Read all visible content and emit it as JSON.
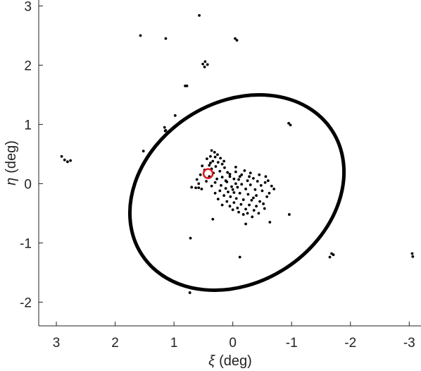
{
  "chart_data": {
    "type": "scatter",
    "xlabel": {
      "symbol": "ξ",
      "unit": "(deg)"
    },
    "ylabel": {
      "symbol": "η",
      "unit": "(deg)"
    },
    "xlim": [
      -3.2,
      3.3
    ],
    "ylim": [
      -2.4,
      3.1
    ],
    "x_reversed": true,
    "x_ticks": [
      3,
      2,
      1,
      0,
      -1,
      -2,
      -3
    ],
    "x_tick_labels": [
      "3",
      "2",
      "1",
      "0",
      "-1",
      "-2",
      "-3"
    ],
    "y_ticks": [
      3,
      2,
      1,
      0,
      -1,
      -2
    ],
    "y_tick_labels": [
      "3",
      "2",
      "1",
      "0",
      "-1",
      "-2"
    ],
    "grid": false,
    "colors": {
      "points": "#000000",
      "ellipse": "#000000",
      "marker": "#e0161b"
    },
    "ellipse": {
      "center": [
        -0.07,
        -0.15
      ],
      "semi_major": 1.93,
      "semi_minor": 1.52,
      "major_axis_angle_deg": -33
    },
    "highlight": {
      "x": 0.42,
      "y": 0.17
    },
    "points": [
      [
        0.57,
        2.84
      ],
      [
        1.57,
        2.5
      ],
      [
        1.14,
        2.45
      ],
      [
        -0.04,
        2.45
      ],
      [
        -0.07,
        2.42
      ],
      [
        0.47,
        2.06
      ],
      [
        0.51,
        2.02
      ],
      [
        0.43,
        2.01
      ],
      [
        0.48,
        1.97
      ],
      [
        0.81,
        1.65
      ],
      [
        0.78,
        1.65
      ],
      [
        0.98,
        1.15
      ],
      [
        1.16,
        0.95
      ],
      [
        1.15,
        0.89
      ],
      [
        1.14,
        0.9
      ],
      [
        -0.95,
        1.02
      ],
      [
        -0.98,
        0.99
      ],
      [
        1.52,
        0.55
      ],
      [
        2.91,
        0.46
      ],
      [
        2.86,
        0.4
      ],
      [
        2.81,
        0.37
      ],
      [
        2.76,
        0.39
      ],
      [
        0.36,
        0.56
      ],
      [
        0.31,
        0.53
      ],
      [
        0.26,
        0.49
      ],
      [
        0.38,
        0.46
      ],
      [
        0.3,
        0.45
      ],
      [
        0.21,
        0.43
      ],
      [
        0.34,
        0.38
      ],
      [
        0.25,
        0.36
      ],
      [
        0.18,
        0.33
      ],
      [
        0.4,
        0.31
      ],
      [
        0.29,
        0.29
      ],
      [
        0.14,
        0.27
      ],
      [
        0.36,
        0.25
      ],
      [
        0.48,
        0.23
      ],
      [
        0.22,
        0.21
      ],
      [
        0.09,
        0.19
      ],
      [
        0.33,
        0.18
      ],
      [
        0.55,
        0.15
      ],
      [
        0.4,
        0.12
      ],
      [
        0.18,
        0.11
      ],
      [
        0.27,
        0.08
      ],
      [
        0.61,
        0.07
      ],
      [
        0.05,
        0.16
      ],
      [
        0.12,
        0.05
      ],
      [
        0.45,
        0.04
      ],
      [
        0.3,
        0.02
      ],
      [
        0.58,
        0.0
      ],
      [
        0.36,
        -0.04
      ],
      [
        0.63,
        -0.07
      ],
      [
        0.2,
        -0.03
      ],
      [
        0.05,
        0.12
      ],
      [
        -0.05,
        0.2
      ],
      [
        -0.2,
        0.22
      ],
      [
        -0.15,
        0.15
      ],
      [
        -0.28,
        0.12
      ],
      [
        -0.02,
        0.08
      ],
      [
        -0.1,
        0.07
      ],
      [
        -0.25,
        0.05
      ],
      [
        -0.35,
        0.09
      ],
      [
        -0.42,
        0.04
      ],
      [
        -0.05,
        0.0
      ],
      [
        -0.15,
        -0.01
      ],
      [
        -0.3,
        -0.02
      ],
      [
        -0.48,
        -0.03
      ],
      [
        -0.55,
        0.02
      ],
      [
        0.02,
        -0.05
      ],
      [
        0.12,
        -0.08
      ],
      [
        -0.08,
        -0.06
      ],
      [
        -0.22,
        -0.09
      ],
      [
        -0.38,
        -0.1
      ],
      [
        -0.5,
        -0.12
      ],
      [
        0.08,
        -0.14
      ],
      [
        -0.02,
        -0.15
      ],
      [
        -0.12,
        -0.16
      ],
      [
        -0.26,
        -0.18
      ],
      [
        -0.4,
        -0.2
      ],
      [
        -0.58,
        -0.22
      ],
      [
        0.15,
        -0.2
      ],
      [
        0.04,
        -0.22
      ],
      [
        -0.06,
        -0.25
      ],
      [
        -0.18,
        -0.27
      ],
      [
        -0.32,
        -0.28
      ],
      [
        -0.46,
        -0.3
      ],
      [
        0.1,
        -0.3
      ],
      [
        -0.02,
        -0.32
      ],
      [
        -0.14,
        -0.35
      ],
      [
        -0.28,
        -0.36
      ],
      [
        -0.4,
        -0.38
      ],
      [
        0.05,
        -0.38
      ],
      [
        -0.08,
        -0.41
      ],
      [
        -0.22,
        -0.43
      ],
      [
        -0.36,
        -0.45
      ],
      [
        -0.1,
        -0.48
      ],
      [
        -0.25,
        -0.5
      ],
      [
        -0.54,
        -0.42
      ],
      [
        -0.56,
        0.12
      ],
      [
        -0.6,
        0.05
      ],
      [
        -0.66,
        -0.04
      ],
      [
        -0.7,
        -0.09
      ],
      [
        -0.52,
        -0.34
      ],
      [
        0.22,
        -0.12
      ],
      [
        0.3,
        -0.16
      ],
      [
        0.18,
        -0.36
      ],
      [
        0.0,
        -0.44
      ],
      [
        -0.18,
        -0.52
      ],
      [
        -0.33,
        -0.56
      ],
      [
        -0.44,
        -0.5
      ],
      [
        0.25,
        -0.26
      ],
      [
        -0.05,
        0.28
      ],
      [
        -0.3,
        0.18
      ],
      [
        0.38,
        0.35
      ],
      [
        0.44,
        0.42
      ],
      [
        0.52,
        0.3
      ],
      [
        0.15,
        0.38
      ],
      [
        0.1,
        0.03
      ],
      [
        -0.45,
        0.15
      ],
      [
        -0.62,
        -0.16
      ],
      [
        -0.12,
        0.12
      ],
      [
        0.0,
        -0.1
      ],
      [
        -0.35,
        -0.24
      ],
      [
        0.58,
        -0.07
      ],
      [
        0.7,
        -0.06
      ],
      [
        0.53,
        -0.09
      ],
      [
        0.72,
        -0.92
      ],
      [
        0.34,
        -0.6
      ],
      [
        -0.63,
        -0.65
      ],
      [
        -0.96,
        -0.52
      ],
      [
        -0.22,
        -0.68
      ],
      [
        -0.12,
        -1.24
      ],
      [
        0.73,
        -1.84
      ],
      [
        -1.65,
        -1.24
      ],
      [
        -1.68,
        -1.18
      ],
      [
        -1.71,
        -1.2
      ],
      [
        -3.05,
        -1.18
      ],
      [
        -3.06,
        -1.23
      ]
    ]
  }
}
